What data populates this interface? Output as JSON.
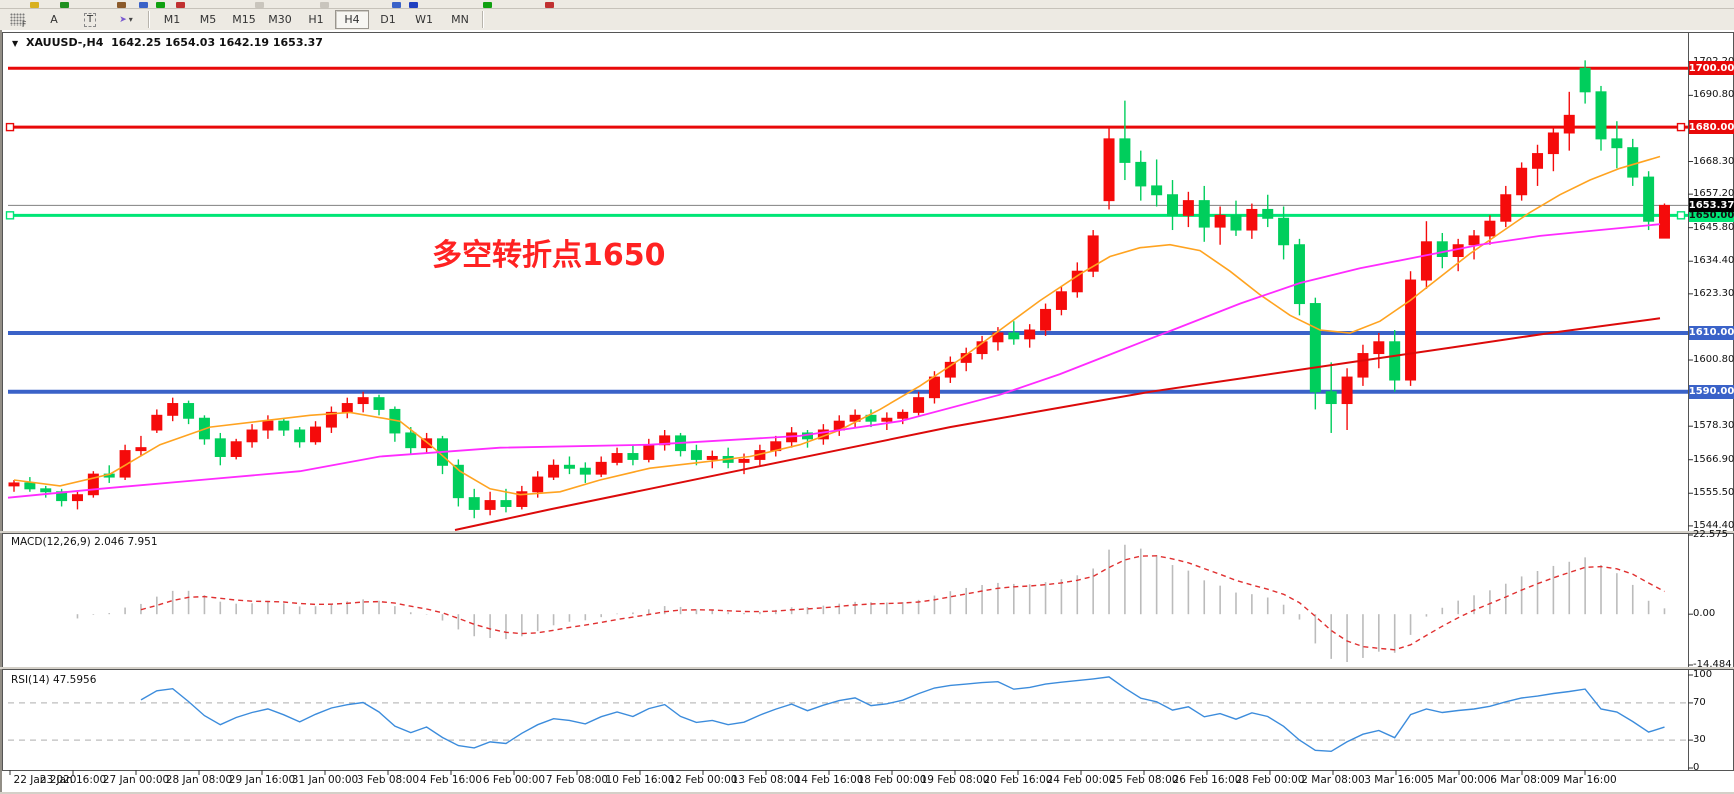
{
  "toolbar": {
    "grid_tool_label": "F",
    "label_tool": "A",
    "text_tool": "T",
    "arrow_tool": "➤",
    "caret": "▾",
    "strip_fragments": [
      {
        "x": 30,
        "c": "#D8B020"
      },
      {
        "x": 60,
        "c": "#209020"
      },
      {
        "x": 117,
        "c": "#8B5A2B"
      },
      {
        "x": 139,
        "c": "#3A62C8"
      },
      {
        "x": 156,
        "c": "#10A010"
      },
      {
        "x": 176,
        "c": "#C03030"
      },
      {
        "x": 255,
        "c": "#C9C5BD"
      },
      {
        "x": 320,
        "c": "#C9C5BD"
      },
      {
        "x": 392,
        "c": "#3A62C8"
      },
      {
        "x": 409,
        "c": "#2040C0"
      },
      {
        "x": 483,
        "c": "#10A010"
      },
      {
        "x": 545,
        "c": "#C03030"
      }
    ]
  },
  "timeframes": {
    "items": [
      "M1",
      "M5",
      "M15",
      "M30",
      "H1",
      "H4",
      "D1",
      "W1",
      "MN"
    ],
    "active": "H4"
  },
  "chart": {
    "symbol_period": "XAUUSD-,H4",
    "ohlc": "1642.25 1654.03 1642.19 1653.37",
    "annotation": "多空转折点1650"
  },
  "indicators": {
    "macd_label": "MACD(12,26,9) 2.046 7.951",
    "rsi_label": "RSI(14) 47.5956"
  },
  "axes": {
    "price_ticks": [
      {
        "v": 1702.2,
        "t": "1702.20"
      },
      {
        "v": 1690.8,
        "t": "1690.80"
      },
      {
        "v": 1668.3,
        "t": "1668.30"
      },
      {
        "v": 1657.2,
        "t": "1657.20"
      },
      {
        "v": 1645.8,
        "t": "1645.80"
      },
      {
        "v": 1634.4,
        "t": "1634.40"
      },
      {
        "v": 1623.3,
        "t": "1623.30"
      },
      {
        "v": 1600.8,
        "t": "1600.80"
      },
      {
        "v": 1578.3,
        "t": "1578.30"
      },
      {
        "v": 1566.9,
        "t": "1566.90"
      },
      {
        "v": 1555.5,
        "t": "1555.50"
      },
      {
        "v": 1544.4,
        "t": "1544.40"
      }
    ],
    "macd_ticks": [
      {
        "v": 22.575,
        "t": "22.575"
      },
      {
        "v": 0,
        "t": "0.00"
      },
      {
        "v": -14.484,
        "t": "-14.484"
      }
    ],
    "rsi_ticks": [
      {
        "v": 100,
        "t": "100"
      },
      {
        "v": 70,
        "t": "70"
      },
      {
        "v": 30,
        "t": "30"
      },
      {
        "v": 0,
        "t": "0"
      }
    ],
    "dates": [
      "22 Jan 2020",
      "23 Jan 16:00",
      "27 Jan 00:00",
      "28 Jan 08:00",
      "29 Jan 16:00",
      "31 Jan 00:00",
      "3 Feb 08:00",
      "4 Feb 16:00",
      "6 Feb 00:00",
      "7 Feb 08:00",
      "10 Feb 16:00",
      "12 Feb 00:00",
      "13 Feb 08:00",
      "14 Feb 16:00",
      "18 Feb 00:00",
      "19 Feb 08:00",
      "20 Feb 16:00",
      "24 Feb 00:00",
      "25 Feb 08:00",
      "26 Feb 16:00",
      "28 Feb 00:00",
      "2 Mar 08:00",
      "3 Mar 16:00",
      "5 Mar 00:00",
      "6 Mar 08:00",
      "9 Mar 16:00"
    ]
  },
  "chart_data": {
    "type": "candlestick",
    "symbol": "XAUUSD-",
    "period": "H4",
    "up_color_convention": "red-up-green-down",
    "ylim": [
      1543,
      1712
    ],
    "candles": [
      [
        1558,
        1560,
        1556,
        1559
      ],
      [
        1559,
        1561,
        1556,
        1557
      ],
      [
        1557,
        1558,
        1554,
        1556
      ],
      [
        1556,
        1557,
        1551,
        1553
      ],
      [
        1553,
        1556,
        1550,
        1555
      ],
      [
        1555,
        1563,
        1554,
        1562
      ],
      [
        1562,
        1565,
        1559,
        1561
      ],
      [
        1561,
        1572,
        1560,
        1570
      ],
      [
        1570,
        1575,
        1568,
        1571
      ],
      [
        1577,
        1584,
        1576,
        1582
      ],
      [
        1582,
        1588,
        1580,
        1586
      ],
      [
        1586,
        1587,
        1579,
        1581
      ],
      [
        1581,
        1582,
        1572,
        1574
      ],
      [
        1574,
        1576,
        1565,
        1568
      ],
      [
        1568,
        1574,
        1567,
        1573
      ],
      [
        1573,
        1579,
        1571,
        1577
      ],
      [
        1577,
        1582,
        1574,
        1580
      ],
      [
        1580,
        1581,
        1575,
        1577
      ],
      [
        1577,
        1578,
        1571,
        1573
      ],
      [
        1573,
        1580,
        1572,
        1578
      ],
      [
        1578,
        1585,
        1576,
        1583
      ],
      [
        1583,
        1588,
        1581,
        1586
      ],
      [
        1586,
        1590,
        1583,
        1588
      ],
      [
        1588,
        1589,
        1582,
        1584
      ],
      [
        1584,
        1585,
        1573,
        1576
      ],
      [
        1576,
        1578,
        1569,
        1571
      ],
      [
        1571,
        1576,
        1569,
        1574
      ],
      [
        1574,
        1575,
        1562,
        1565
      ],
      [
        1565,
        1567,
        1551,
        1554
      ],
      [
        1554,
        1557,
        1547,
        1550
      ],
      [
        1550,
        1556,
        1548,
        1553
      ],
      [
        1553,
        1557,
        1549,
        1551
      ],
      [
        1551,
        1558,
        1550,
        1556
      ],
      [
        1556,
        1563,
        1554,
        1561
      ],
      [
        1561,
        1567,
        1560,
        1565
      ],
      [
        1565,
        1568,
        1562,
        1564
      ],
      [
        1564,
        1566,
        1559,
        1562
      ],
      [
        1562,
        1568,
        1561,
        1566
      ],
      [
        1566,
        1571,
        1565,
        1569
      ],
      [
        1569,
        1572,
        1565,
        1567
      ],
      [
        1567,
        1574,
        1566,
        1572
      ],
      [
        1572,
        1577,
        1570,
        1575
      ],
      [
        1575,
        1576,
        1568,
        1570
      ],
      [
        1570,
        1572,
        1565,
        1567
      ],
      [
        1567,
        1570,
        1564,
        1568
      ],
      [
        1568,
        1571,
        1564,
        1566
      ],
      [
        1566,
        1569,
        1562,
        1567
      ],
      [
        1567,
        1572,
        1565,
        1570
      ],
      [
        1570,
        1575,
        1568,
        1573
      ],
      [
        1573,
        1578,
        1571,
        1576
      ],
      [
        1576,
        1577,
        1571,
        1574
      ],
      [
        1574,
        1579,
        1572,
        1577
      ],
      [
        1577,
        1582,
        1575,
        1580
      ],
      [
        1580,
        1584,
        1578,
        1582
      ],
      [
        1582,
        1584,
        1578,
        1580
      ],
      [
        1580,
        1583,
        1577,
        1581
      ],
      [
        1581,
        1584,
        1579,
        1583
      ],
      [
        1583,
        1590,
        1582,
        1588
      ],
      [
        1588,
        1597,
        1586,
        1595
      ],
      [
        1595,
        1602,
        1593,
        1600
      ],
      [
        1600,
        1605,
        1597,
        1603
      ],
      [
        1603,
        1609,
        1601,
        1607
      ],
      [
        1607,
        1612,
        1604,
        1610
      ],
      [
        1610,
        1614,
        1606,
        1608
      ],
      [
        1608,
        1613,
        1605,
        1611
      ],
      [
        1611,
        1620,
        1609,
        1618
      ],
      [
        1618,
        1626,
        1616,
        1624
      ],
      [
        1624,
        1634,
        1622,
        1631
      ],
      [
        1631,
        1645,
        1629,
        1643
      ],
      [
        1655,
        1680,
        1652,
        1676
      ],
      [
        1676,
        1689,
        1662,
        1668
      ],
      [
        1668,
        1672,
        1655,
        1660
      ],
      [
        1660,
        1669,
        1653,
        1657
      ],
      [
        1657,
        1662,
        1645,
        1650
      ],
      [
        1650,
        1658,
        1646,
        1655
      ],
      [
        1655,
        1660,
        1641,
        1646
      ],
      [
        1646,
        1653,
        1640,
        1650
      ],
      [
        1650,
        1655,
        1643,
        1645
      ],
      [
        1645,
        1654,
        1642,
        1652
      ],
      [
        1652,
        1657,
        1646,
        1649
      ],
      [
        1649,
        1653,
        1635,
        1640
      ],
      [
        1640,
        1642,
        1616,
        1620
      ],
      [
        1620,
        1622,
        1584,
        1590
      ],
      [
        1590,
        1600,
        1576,
        1586
      ],
      [
        1586,
        1598,
        1577,
        1595
      ],
      [
        1595,
        1606,
        1592,
        1603
      ],
      [
        1603,
        1610,
        1598,
        1607
      ],
      [
        1607,
        1611,
        1590,
        1594
      ],
      [
        1594,
        1631,
        1592,
        1628
      ],
      [
        1628,
        1648,
        1625,
        1641
      ],
      [
        1641,
        1644,
        1632,
        1636
      ],
      [
        1636,
        1642,
        1631,
        1640
      ],
      [
        1640,
        1645,
        1635,
        1643
      ],
      [
        1643,
        1650,
        1640,
        1648
      ],
      [
        1648,
        1660,
        1646,
        1657
      ],
      [
        1657,
        1668,
        1655,
        1666
      ],
      [
        1666,
        1674,
        1660,
        1671
      ],
      [
        1671,
        1680,
        1665,
        1678
      ],
      [
        1678,
        1692,
        1672,
        1684
      ],
      [
        1700,
        1702.7,
        1688,
        1692
      ],
      [
        1692,
        1694,
        1672,
        1676
      ],
      [
        1676,
        1682,
        1666,
        1673
      ],
      [
        1673,
        1676,
        1660,
        1663
      ],
      [
        1663,
        1665,
        1645,
        1648
      ],
      [
        1642.25,
        1654.03,
        1642.19,
        1653.37
      ]
    ],
    "hlines": [
      {
        "price": 1700.0,
        "label": "1700.00",
        "color": "#E80909",
        "text": "#fff",
        "width": 3,
        "handles": false
      },
      {
        "price": 1680.0,
        "label": "1680.00",
        "color": "#E80909",
        "text": "#fff",
        "width": 3,
        "handles": true
      },
      {
        "price": 1650.0,
        "label": "1650.00",
        "color": "#00E676",
        "text": "#111",
        "width": 3,
        "handles": true
      },
      {
        "price": 1610.0,
        "label": "1610.00",
        "color": "#3A62C8",
        "text": "#fff",
        "width": 4,
        "handles": false
      },
      {
        "price": 1590.0,
        "label": "1590.00",
        "color": "#3A62C8",
        "text": "#fff",
        "width": 4,
        "handles": false
      }
    ],
    "current_price": {
      "value": 1653.37,
      "label": "1653.37"
    },
    "moving_averages": [
      {
        "name": "fast-ma",
        "color": "#FFA320",
        "width": 1.6,
        "points": [
          [
            14,
            1560
          ],
          [
            60,
            1558
          ],
          [
            110,
            1562
          ],
          [
            160,
            1572
          ],
          [
            210,
            1578
          ],
          [
            260,
            1580
          ],
          [
            310,
            1582
          ],
          [
            350,
            1583
          ],
          [
            400,
            1580
          ],
          [
            430,
            1572
          ],
          [
            460,
            1563
          ],
          [
            490,
            1557
          ],
          [
            520,
            1555
          ],
          [
            560,
            1556
          ],
          [
            600,
            1560
          ],
          [
            650,
            1564
          ],
          [
            700,
            1566
          ],
          [
            750,
            1568
          ],
          [
            800,
            1572
          ],
          [
            840,
            1577
          ],
          [
            880,
            1584
          ],
          [
            920,
            1592
          ],
          [
            960,
            1601
          ],
          [
            1000,
            1611
          ],
          [
            1040,
            1621
          ],
          [
            1080,
            1630
          ],
          [
            1110,
            1636
          ],
          [
            1140,
            1639
          ],
          [
            1170,
            1640
          ],
          [
            1200,
            1638
          ],
          [
            1230,
            1631
          ],
          [
            1260,
            1623
          ],
          [
            1290,
            1616
          ],
          [
            1320,
            1611
          ],
          [
            1350,
            1610
          ],
          [
            1380,
            1614
          ],
          [
            1410,
            1621
          ],
          [
            1440,
            1629
          ],
          [
            1470,
            1637
          ],
          [
            1500,
            1644
          ],
          [
            1530,
            1651
          ],
          [
            1560,
            1657
          ],
          [
            1590,
            1662
          ],
          [
            1620,
            1666
          ],
          [
            1660,
            1670
          ]
        ]
      },
      {
        "name": "mid-ma",
        "color": "#FF2BFF",
        "width": 1.8,
        "points": [
          [
            8,
            1554
          ],
          [
            100,
            1557
          ],
          [
            200,
            1560
          ],
          [
            300,
            1563
          ],
          [
            380,
            1568
          ],
          [
            500,
            1571
          ],
          [
            650,
            1572
          ],
          [
            800,
            1575
          ],
          [
            900,
            1580
          ],
          [
            1000,
            1589
          ],
          [
            1060,
            1596
          ],
          [
            1120,
            1604
          ],
          [
            1180,
            1612
          ],
          [
            1240,
            1620
          ],
          [
            1300,
            1627
          ],
          [
            1360,
            1632
          ],
          [
            1420,
            1636
          ],
          [
            1480,
            1640
          ],
          [
            1540,
            1643
          ],
          [
            1600,
            1645
          ],
          [
            1660,
            1647
          ]
        ]
      },
      {
        "name": "slow-ma",
        "color": "#DC0A0A",
        "width": 2,
        "points": [
          [
            455,
            1543
          ],
          [
            550,
            1550
          ],
          [
            650,
            1557
          ],
          [
            750,
            1564
          ],
          [
            850,
            1571
          ],
          [
            950,
            1578
          ],
          [
            1050,
            1584
          ],
          [
            1150,
            1590
          ],
          [
            1250,
            1595
          ],
          [
            1350,
            1600
          ],
          [
            1450,
            1605
          ],
          [
            1550,
            1610
          ],
          [
            1660,
            1615
          ]
        ]
      }
    ],
    "macd": {
      "params": [
        12,
        26,
        9
      ],
      "main_value": 2.046,
      "signal_value": 7.951,
      "ylim": [
        -14.484,
        22.575
      ]
    },
    "rsi": {
      "period": 14,
      "value": 47.5956,
      "levels": [
        70,
        30
      ],
      "ylim": [
        0,
        100
      ]
    }
  },
  "colors": {
    "up_candle": "#F50B0B",
    "down_candle": "#00CE5C",
    "macd_hist": "#BBBBBB",
    "macd_signal": "#E03030",
    "rsi_line": "#3C8CDC",
    "annotation": "#FF2222",
    "current_line": "#808080",
    "panel_border": "#555555"
  }
}
